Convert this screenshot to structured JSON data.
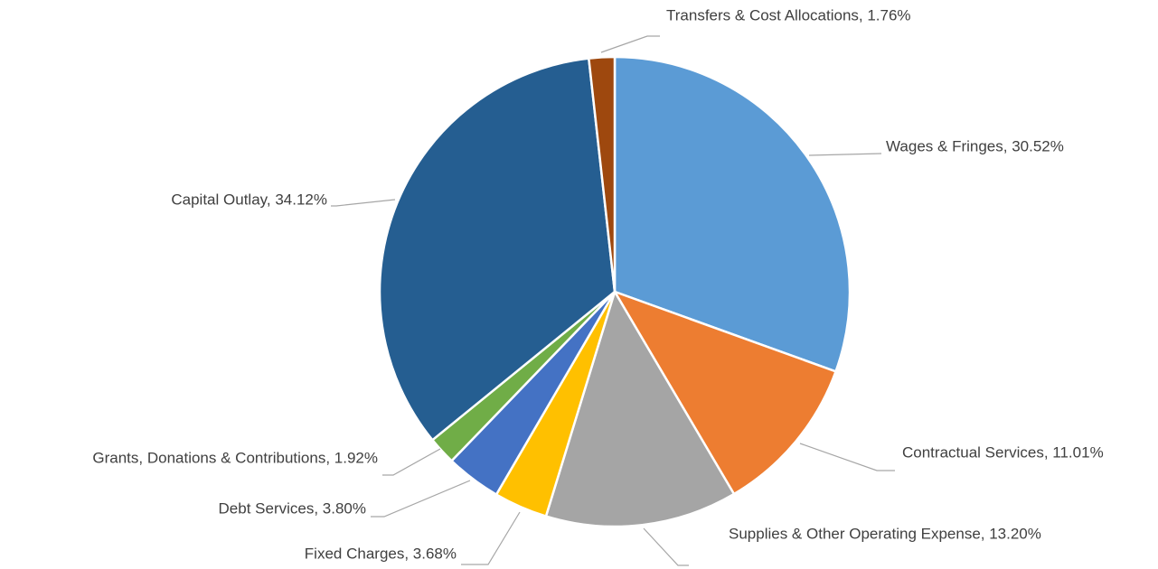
{
  "chart_data": {
    "type": "pie",
    "values": [
      30.52,
      11.01,
      13.2,
      3.68,
      3.8,
      1.92,
      34.12,
      1.76
    ],
    "value_labels": [
      "Wages & Fringes, 30.52%",
      "Contractual Services, 11.01%",
      "Supplies & Other Operating Expense, 13.20%",
      "Fixed Charges, 3.68%",
      "Debt Services, 3.80%",
      "Grants, Donations & Contributions, 1.92%",
      "Capital Outlay, 34.12%",
      "Transfers & Cost Allocations, 1.76%"
    ],
    "colors": [
      "#5b9bd5",
      "#ed7d31",
      "#a5a5a5",
      "#ffc000",
      "#4472c4",
      "#70ad47",
      "#255e91",
      "#9e480e"
    ]
  }
}
